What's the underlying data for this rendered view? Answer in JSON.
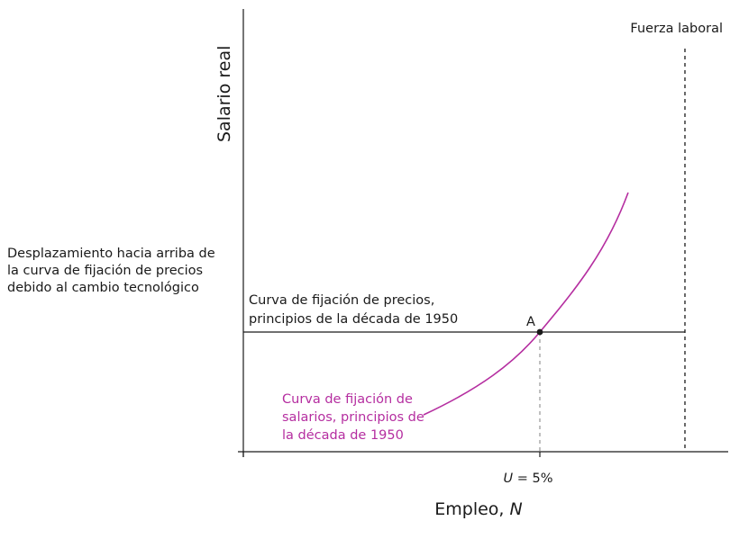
{
  "diagram": {
    "y_axis_label": "Salario real",
    "x_axis_label_text": "Empleo, ",
    "x_axis_label_var": "N",
    "labor_force_label": "Fuerza laboral",
    "side_note_lines": [
      "Desplazamiento hacia arriba de",
      "la curva de fijación de precios",
      "debido al cambio tecnológico"
    ],
    "price_curve_label_lines": [
      "Curva de fijación de precios,",
      "principios de la década de 1950"
    ],
    "wage_curve_label_lines": [
      "Curva de fijación de",
      "salarios, principios de",
      "la década de 1950"
    ],
    "point_label": "A",
    "unemployment_label_var": "U",
    "unemployment_label_value": " = 5%",
    "colors": {
      "axis": "#1a1a1a",
      "wage_curve": "#b52ea0",
      "guide": "#8c8c8c"
    }
  }
}
